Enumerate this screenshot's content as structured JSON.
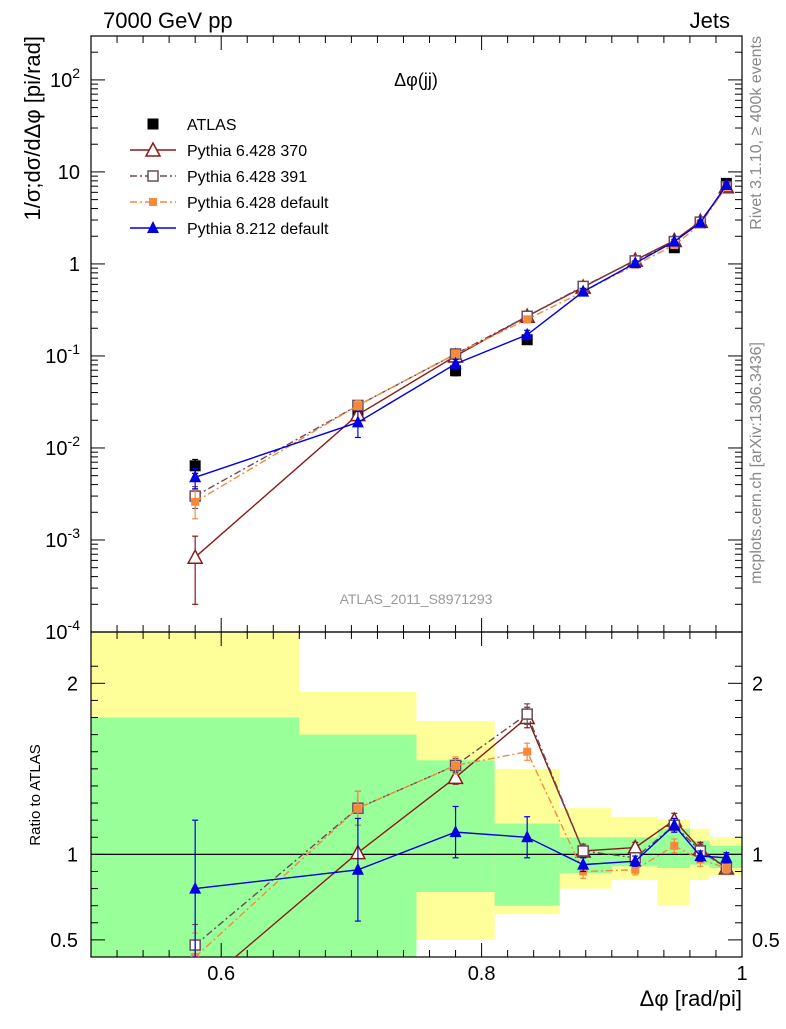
{
  "header": {
    "left_label": "7000 GeV pp",
    "right_label": "Jets",
    "side_label_top": "Rivet 3.1.10, ≥ 400k events",
    "side_label_bottom": "mcplots.cern.ch [arXiv:1306.3436]"
  },
  "chart_data": [
    {
      "type": "line",
      "title": "Δφ(jj)",
      "watermark": "ATLAS_2011_S8971293",
      "ylabel": "1/σ;dσ/dΔφ [pi/rad]",
      "xlabel": "",
      "yscale": "log",
      "xlim": [
        0.5,
        1.0
      ],
      "ylim": [
        0.0001,
        300
      ],
      "ytick_values": [
        0.0001,
        0.001,
        0.01,
        0.1,
        1,
        10,
        100
      ],
      "ytick_labels": [
        [
          "10",
          "-4"
        ],
        [
          "10",
          "-3"
        ],
        [
          "10",
          "-2"
        ],
        [
          "10",
          "-1"
        ],
        [
          "1",
          ""
        ],
        [
          "10",
          ""
        ],
        [
          "10",
          "2"
        ]
      ],
      "legend_position": "upper-left",
      "x": [
        0.58,
        0.705,
        0.78,
        0.835,
        0.878,
        0.918,
        0.948,
        0.968,
        0.988
      ],
      "series": [
        {
          "name": "ATLAS",
          "color": "#000000",
          "marker": "square-filled",
          "dash": "",
          "values": [
            0.0064,
            0.023,
            0.069,
            0.15,
            0.55,
            1.05,
            1.5,
            2.8,
            7.5
          ],
          "err_lo": [
            0.0011,
            0.003,
            0.008,
            0.015,
            0.05,
            0.08,
            0.12,
            0.2,
            0.5
          ],
          "err_hi": [
            0.0011,
            0.003,
            0.008,
            0.015,
            0.05,
            0.08,
            0.12,
            0.2,
            0.5
          ]
        },
        {
          "name": "Pythia 6.428 370",
          "color": "#8b1a1a",
          "marker": "triangle-open",
          "dash": "",
          "values": [
            0.00065,
            0.023,
            0.1,
            0.27,
            0.56,
            1.1,
            1.8,
            2.9,
            6.9
          ],
          "err_lo": [
            0.00045,
            0.005,
            0.01,
            0.02,
            0.04,
            0.06,
            0.1,
            0.2,
            0.4
          ],
          "err_hi": [
            0.00045,
            0.005,
            0.01,
            0.02,
            0.04,
            0.06,
            0.1,
            0.2,
            0.4
          ]
        },
        {
          "name": "Pythia 6.428 391",
          "color": "#6b4a5a",
          "marker": "square-open",
          "dash": "7,3,2,3",
          "values": [
            0.003,
            0.029,
            0.105,
            0.27,
            0.57,
            1.08,
            1.75,
            2.85,
            6.9
          ],
          "err_lo": [
            0.0008,
            0.004,
            0.01,
            0.02,
            0.04,
            0.06,
            0.1,
            0.2,
            0.4
          ],
          "err_hi": [
            0.0008,
            0.004,
            0.01,
            0.02,
            0.04,
            0.06,
            0.1,
            0.2,
            0.4
          ]
        },
        {
          "name": "Pythia 6.428 default",
          "color": "#f58a3c",
          "marker": "square-filled-small",
          "dash": "7,3,2,3",
          "values": [
            0.0026,
            0.029,
            0.105,
            0.25,
            0.5,
            0.98,
            1.6,
            2.7,
            6.9
          ],
          "err_lo": [
            0.0009,
            0.004,
            0.01,
            0.02,
            0.04,
            0.06,
            0.1,
            0.2,
            0.4
          ],
          "err_hi": [
            0.0009,
            0.004,
            0.01,
            0.02,
            0.04,
            0.06,
            0.1,
            0.2,
            0.4
          ]
        },
        {
          "name": "Pythia 8.212 default",
          "color": "#0000e0",
          "marker": "triangle-filled",
          "dash": "",
          "values": [
            0.0048,
            0.019,
            0.082,
            0.17,
            0.5,
            1.02,
            1.75,
            2.8,
            7.2
          ],
          "err_lo": [
            0.0012,
            0.006,
            0.01,
            0.02,
            0.04,
            0.06,
            0.1,
            0.2,
            0.4
          ],
          "err_hi": [
            0.0012,
            0.006,
            0.01,
            0.02,
            0.04,
            0.06,
            0.1,
            0.2,
            0.4
          ]
        }
      ]
    },
    {
      "type": "line",
      "title": "",
      "ylabel": "Ratio to ATLAS",
      "xlabel": "Δφ [rad/pi]",
      "xlim": [
        0.5,
        1.0
      ],
      "ylim": [
        0.4,
        2.3
      ],
      "ytick_values": [
        0.5,
        1,
        2
      ],
      "ytick_labels": [
        "0.5",
        "1",
        "2"
      ],
      "xtick_values": [
        0.6,
        0.8,
        1.0
      ],
      "xtick_labels": [
        "0.6",
        "0.8",
        "1"
      ],
      "reference_line": 1.0,
      "band_edges": [
        0.5,
        0.66,
        0.75,
        0.81,
        0.86,
        0.9,
        0.935,
        0.96,
        0.975,
        1.0
      ],
      "band_outer_lo": [
        0.4,
        0.4,
        0.5,
        0.65,
        0.8,
        0.85,
        0.7,
        0.85,
        0.88
      ],
      "band_outer_hi": [
        2.3,
        1.95,
        1.78,
        1.5,
        1.27,
        1.22,
        1.2,
        1.15,
        1.1
      ],
      "band_inner_lo": [
        0.4,
        0.4,
        0.78,
        0.7,
        0.89,
        0.93,
        0.92,
        0.94,
        0.92
      ],
      "band_inner_hi": [
        1.8,
        1.7,
        1.55,
        1.18,
        1.1,
        1.1,
        1.15,
        1.08,
        1.05
      ],
      "band_outer_color": "#ffff99",
      "band_inner_color": "#99ff99",
      "x": [
        0.58,
        0.705,
        0.78,
        0.835,
        0.878,
        0.918,
        0.948,
        0.968,
        0.988
      ],
      "series": [
        {
          "name": "Pythia 6.428 370",
          "color": "#8b1a1a",
          "marker": "triangle-open",
          "dash": "",
          "values": [
            0.2,
            1.01,
            1.45,
            1.8,
            1.02,
            1.04,
            1.2,
            1.03,
            0.92
          ],
          "err": [
            0,
            0,
            0.04,
            0.06,
            0.04,
            0.03,
            0.04,
            0.04,
            0.03
          ]
        },
        {
          "name": "Pythia 6.428 391",
          "color": "#6b4a5a",
          "marker": "square-open",
          "dash": "7,3,2,3",
          "values": [
            0.47,
            1.27,
            1.52,
            1.82,
            1.02,
            0.98,
            1.17,
            1.02,
            0.92
          ],
          "err": [
            0.12,
            0.1,
            0.04,
            0.06,
            0.04,
            0.03,
            0.04,
            0.04,
            0.03
          ]
        },
        {
          "name": "Pythia 6.428 default",
          "color": "#f58a3c",
          "marker": "square-filled-small",
          "dash": "7,3,2,3",
          "values": [
            0.4,
            1.27,
            1.52,
            1.6,
            0.9,
            0.91,
            1.05,
            0.97,
            0.92
          ],
          "err": [
            0.14,
            0.1,
            0.05,
            0.05,
            0.04,
            0.03,
            0.04,
            0.04,
            0.03
          ]
        },
        {
          "name": "Pythia 8.212 default",
          "color": "#0000e0",
          "marker": "triangle-filled",
          "dash": "",
          "values": [
            0.8,
            0.91,
            1.13,
            1.1,
            0.94,
            0.96,
            1.17,
            0.99,
            0.98
          ],
          "err": [
            0.4,
            0.3,
            0.15,
            0.12,
            0.04,
            0.03,
            0.04,
            0.03,
            0.03
          ]
        }
      ]
    }
  ]
}
